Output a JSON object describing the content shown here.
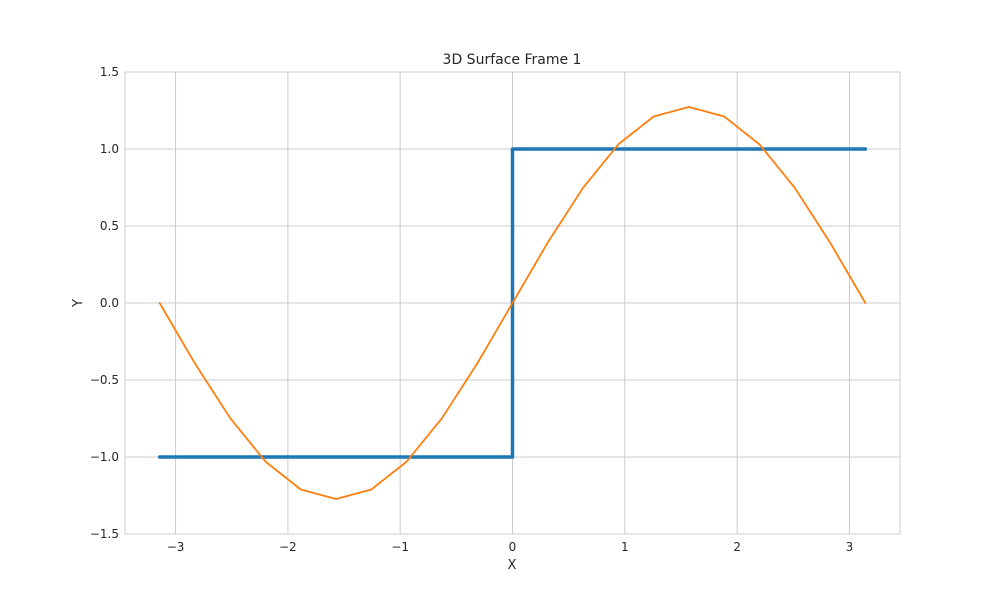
{
  "chart_data": {
    "type": "line",
    "title": "3D Surface Frame 1",
    "xlabel": "X",
    "ylabel": "Y",
    "xlim": [
      -3.45,
      3.45
    ],
    "ylim": [
      -1.5,
      1.5
    ],
    "grid": true,
    "x_ticks": [
      -3,
      -2,
      -1,
      0,
      1,
      2,
      3
    ],
    "x_tick_labels": [
      "−3",
      "−2",
      "−1",
      "0",
      "1",
      "2",
      "3"
    ],
    "y_ticks": [
      1.5,
      1.0,
      0.5,
      0.0,
      -0.5,
      -1.0,
      -1.5
    ],
    "y_tick_labels": [
      "1.5",
      "1.0",
      "0.5",
      "0.0",
      "−0.5",
      "−1.0",
      "−1.5"
    ],
    "series": [
      {
        "color": "#1f77b4",
        "x": [
          -3.14159,
          0,
          0,
          3.14159
        ],
        "y": [
          -1,
          -1,
          1,
          1
        ]
      },
      {
        "color": "#ff7f0e",
        "x": [
          -3.14159,
          -2.827,
          -2.513,
          -2.199,
          -1.885,
          -1.571,
          -1.257,
          -0.942,
          -0.628,
          -0.314,
          0,
          0.314,
          0.628,
          0.942,
          1.257,
          1.571,
          1.885,
          2.199,
          2.513,
          2.827,
          3.14159
        ],
        "y": [
          0,
          -0.393,
          -0.748,
          -1.03,
          -1.211,
          -1.273,
          -1.211,
          -1.03,
          -0.748,
          -0.393,
          0,
          0.393,
          0.748,
          1.03,
          1.211,
          1.273,
          1.211,
          1.03,
          0.748,
          0.393,
          0
        ]
      }
    ]
  }
}
